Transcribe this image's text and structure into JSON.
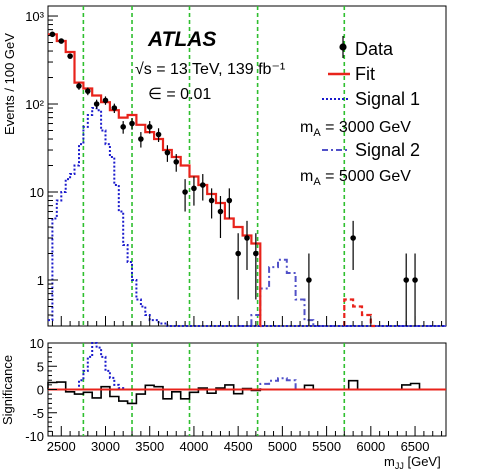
{
  "chart_data": [
    {
      "type": "line",
      "panel": "main",
      "ylabel": "Events / 100 GeV",
      "yscale": "log",
      "xlim": [
        2350,
        6850
      ],
      "ylim": [
        0.3,
        1300
      ],
      "yticks": [
        {
          "value": 1,
          "label": "1"
        },
        {
          "value": 10,
          "label": "10"
        },
        {
          "value": 100,
          "label": "10²"
        },
        {
          "value": 1000,
          "label": "10³"
        }
      ],
      "annotations": {
        "experiment": "ATLAS",
        "energy": "√s = 13 TeV, 139 fb⁻¹",
        "epsilon": "∈ = 0.01"
      },
      "legend": [
        {
          "key": "data",
          "label": "Data"
        },
        {
          "key": "fit",
          "label": "Fit"
        },
        {
          "key": "signal1",
          "label": "Signal 1",
          "sublabel": "mA = 3000 GeV"
        },
        {
          "key": "signal2",
          "label": "Signal 2",
          "sublabel": "mA = 5000 GeV"
        }
      ],
      "legend_position": "top-right",
      "colors": {
        "data": "#000000",
        "fit": "#e8231b",
        "signal1": "#1a1acc",
        "signal2": "#5151c8",
        "window": "#2fbf2f"
      },
      "window_lines": [
        2750,
        3300,
        3950,
        4720,
        5700
      ],
      "data_points": [
        {
          "x": 2400,
          "y": 620,
          "err": 30
        },
        {
          "x": 2500,
          "y": 520,
          "err": 28
        },
        {
          "x": 2600,
          "y": 350,
          "err": 22
        },
        {
          "x": 2700,
          "y": 160,
          "err": 15
        },
        {
          "x": 2800,
          "y": 140,
          "err": 14
        },
        {
          "x": 2900,
          "y": 100,
          "err": 12
        },
        {
          "x": 3000,
          "y": 110,
          "err": 12
        },
        {
          "x": 3100,
          "y": 90,
          "err": 11
        },
        {
          "x": 3200,
          "y": 55,
          "err": 9
        },
        {
          "x": 3300,
          "y": 60,
          "err": 9
        },
        {
          "x": 3400,
          "y": 40,
          "err": 8
        },
        {
          "x": 3500,
          "y": 55,
          "err": 9
        },
        {
          "x": 3600,
          "y": 45,
          "err": 8
        },
        {
          "x": 3700,
          "y": 28,
          "err": 6
        },
        {
          "x": 3800,
          "y": 22,
          "err": 5
        },
        {
          "x": 3900,
          "y": 10,
          "err": 4
        },
        {
          "x": 4000,
          "y": 11,
          "err": 4
        },
        {
          "x": 4100,
          "y": 12,
          "err": 4
        },
        {
          "x": 4200,
          "y": 8,
          "err": 3
        },
        {
          "x": 4300,
          "y": 6,
          "err": 3
        },
        {
          "x": 4400,
          "y": 8,
          "err": 3
        },
        {
          "x": 4500,
          "y": 2,
          "err": 1.4
        },
        {
          "x": 4600,
          "y": 3,
          "err": 1.7
        },
        {
          "x": 4700,
          "y": 2,
          "err": 1.4
        },
        {
          "x": 5300,
          "y": 1,
          "err": 1
        },
        {
          "x": 5800,
          "y": 3,
          "err": 1.7
        },
        {
          "x": 6400,
          "y": 1,
          "err": 1
        },
        {
          "x": 6500,
          "y": 1,
          "err": 1
        }
      ],
      "fit": [
        {
          "x0": 2350,
          "y": 620
        },
        {
          "x0": 2450,
          "y": 520
        },
        {
          "x0": 2550,
          "y": 390
        },
        {
          "x0": 2650,
          "y": 175
        },
        {
          "x0": 2750,
          "y": 150
        },
        {
          "x0": 2850,
          "y": 125
        },
        {
          "x0": 2950,
          "y": 105
        },
        {
          "x0": 3050,
          "y": 85
        },
        {
          "x0": 3150,
          "y": 70
        },
        {
          "x0": 3250,
          "y": 75
        },
        {
          "x0": 3350,
          "y": 58
        },
        {
          "x0": 3450,
          "y": 48
        },
        {
          "x0": 3550,
          "y": 40
        },
        {
          "x0": 3650,
          "y": 30
        },
        {
          "x0": 3750,
          "y": 25
        },
        {
          "x0": 3850,
          "y": 20
        },
        {
          "x0": 3950,
          "y": 15
        },
        {
          "x0": 4050,
          "y": 12
        },
        {
          "x0": 4150,
          "y": 9.5
        },
        {
          "x0": 4250,
          "y": 7.5
        },
        {
          "x0": 4350,
          "y": 5
        },
        {
          "x0": 4450,
          "y": 4
        },
        {
          "x0": 4550,
          "y": 3.2
        },
        {
          "x0": 4650,
          "y": 2.6
        },
        {
          "x0": 4750,
          "y": 0.3
        },
        {
          "x0": 5700,
          "y": 0.6
        },
        {
          "x0": 5800,
          "y": 0.5
        },
        {
          "x0": 5900,
          "y": 0.4
        },
        {
          "x0": 6000,
          "y": 0.3
        }
      ],
      "signal1": [
        {
          "x0": 2350,
          "y": 0.35
        },
        {
          "x0": 2400,
          "y": 5
        },
        {
          "x0": 2450,
          "y": 8
        },
        {
          "x0": 2500,
          "y": 10
        },
        {
          "x0": 2550,
          "y": 14
        },
        {
          "x0": 2600,
          "y": 16
        },
        {
          "x0": 2650,
          "y": 20
        },
        {
          "x0": 2700,
          "y": 35
        },
        {
          "x0": 2750,
          "y": 55
        },
        {
          "x0": 2800,
          "y": 75
        },
        {
          "x0": 2850,
          "y": 90
        },
        {
          "x0": 2900,
          "y": 85
        },
        {
          "x0": 2950,
          "y": 50
        },
        {
          "x0": 3000,
          "y": 35
        },
        {
          "x0": 3050,
          "y": 25
        },
        {
          "x0": 3100,
          "y": 12
        },
        {
          "x0": 3150,
          "y": 6
        },
        {
          "x0": 3200,
          "y": 2.5
        },
        {
          "x0": 3250,
          "y": 1.6
        },
        {
          "x0": 3300,
          "y": 1.0
        },
        {
          "x0": 3350,
          "y": 0.6
        },
        {
          "x0": 3400,
          "y": 0.5
        },
        {
          "x0": 3450,
          "y": 0.4
        },
        {
          "x0": 3500,
          "y": 0.35
        },
        {
          "x0": 3600,
          "y": 0.32
        },
        {
          "x0": 3700,
          "y": 0.3
        },
        {
          "x0": 6800,
          "y": 0.3
        }
      ],
      "signal2": [
        {
          "x0": 4500,
          "y": 0.3
        },
        {
          "x0": 4650,
          "y": 0.4
        },
        {
          "x0": 4750,
          "y": 0.8
        },
        {
          "x0": 4850,
          "y": 1.4
        },
        {
          "x0": 4950,
          "y": 1.7
        },
        {
          "x0": 5050,
          "y": 1.2
        },
        {
          "x0": 5150,
          "y": 0.6
        },
        {
          "x0": 5250,
          "y": 0.35
        },
        {
          "x0": 5350,
          "y": 0.3
        },
        {
          "x0": 6850,
          "y": 0.3
        }
      ]
    },
    {
      "type": "bar",
      "panel": "ratio",
      "ylabel": "Significance",
      "xlabel": "m",
      "xlabel_sub": "JJ",
      "xlabel_unit": "[GeV]",
      "xlim": [
        2350,
        6850
      ],
      "ylim": [
        -10,
        10
      ],
      "yticks": [
        -10,
        -5,
        0,
        5,
        10
      ],
      "xticks": [
        2500,
        3000,
        3500,
        4000,
        4500,
        5000,
        5500,
        6000,
        6500
      ],
      "significance": [
        {
          "x0": 2350,
          "x1": 2450,
          "v": 1.5
        },
        {
          "x0": 2450,
          "x1": 2550,
          "v": 1.6
        },
        {
          "x0": 2550,
          "x1": 2650,
          "v": -0.5
        },
        {
          "x0": 2650,
          "x1": 2750,
          "v": -1.0
        },
        {
          "x0": 2750,
          "x1": 2850,
          "v": -0.6
        },
        {
          "x0": 2850,
          "x1": 2950,
          "v": -1.8
        },
        {
          "x0": 2950,
          "x1": 3050,
          "v": 0.6
        },
        {
          "x0": 3050,
          "x1": 3150,
          "v": -1.5
        },
        {
          "x0": 3150,
          "x1": 3250,
          "v": -2.5
        },
        {
          "x0": 3250,
          "x1": 3350,
          "v": -3.0
        },
        {
          "x0": 3350,
          "x1": 3450,
          "v": -1.0
        },
        {
          "x0": 3450,
          "x1": 3550,
          "v": 0.9
        },
        {
          "x0": 3550,
          "x1": 3650,
          "v": 0.6
        },
        {
          "x0": 3650,
          "x1": 3750,
          "v": -2.0
        },
        {
          "x0": 3750,
          "x1": 3850,
          "v": -0.5
        },
        {
          "x0": 3850,
          "x1": 3950,
          "v": -2.0
        },
        {
          "x0": 3950,
          "x1": 4050,
          "v": -0.6
        },
        {
          "x0": 4050,
          "x1": 4150,
          "v": 0.3
        },
        {
          "x0": 4150,
          "x1": 4250,
          "v": -0.8
        },
        {
          "x0": 4250,
          "x1": 4350,
          "v": 0.3
        },
        {
          "x0": 4350,
          "x1": 4450,
          "v": 1.0
        },
        {
          "x0": 4450,
          "x1": 4550,
          "v": -0.9
        },
        {
          "x0": 4550,
          "x1": 4650,
          "v": 0.2
        },
        {
          "x0": 4650,
          "x1": 4750,
          "v": -0.2
        },
        {
          "x0": 5250,
          "x1": 5350,
          "v": 0.9
        },
        {
          "x0": 5750,
          "x1": 5850,
          "v": 1.9
        },
        {
          "x0": 6350,
          "x1": 6450,
          "v": 1.0
        },
        {
          "x0": 6450,
          "x1": 6550,
          "v": 1.3
        }
      ],
      "signal1_sig": [
        {
          "x0": 2550,
          "v": 0
        },
        {
          "x0": 2700,
          "v": 2.0
        },
        {
          "x0": 2750,
          "v": 4.0
        },
        {
          "x0": 2800,
          "v": 7.0
        },
        {
          "x0": 2850,
          "v": 10.0
        },
        {
          "x0": 2900,
          "v": 9.0
        },
        {
          "x0": 2950,
          "v": 7.0
        },
        {
          "x0": 3000,
          "v": 4.0
        },
        {
          "x0": 3050,
          "v": 2.5
        },
        {
          "x0": 3100,
          "v": 1.0
        },
        {
          "x0": 3150,
          "v": 0.3
        },
        {
          "x0": 3200,
          "v": 0
        }
      ],
      "signal2_sig": [
        {
          "x0": 4700,
          "v": 0
        },
        {
          "x0": 4750,
          "v": 1.2
        },
        {
          "x0": 4850,
          "v": 1.9
        },
        {
          "x0": 4950,
          "v": 2.4
        },
        {
          "x0": 5050,
          "v": 2.0
        },
        {
          "x0": 5150,
          "v": 0
        }
      ]
    }
  ]
}
